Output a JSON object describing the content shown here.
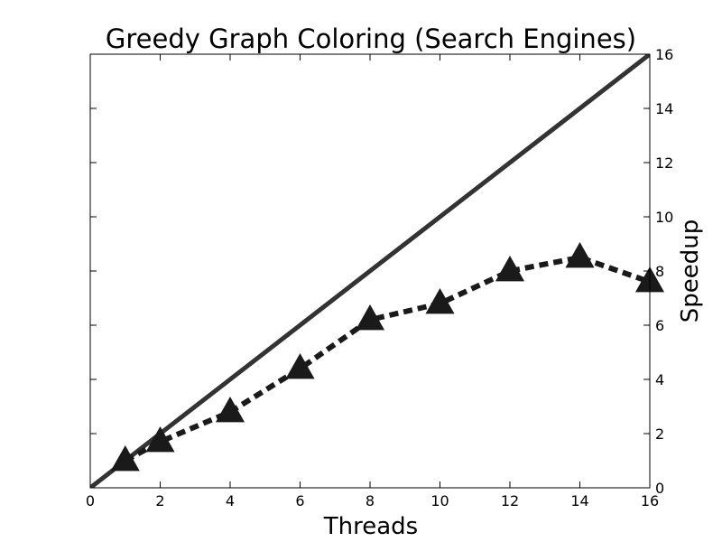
{
  "chart_data": {
    "type": "line",
    "title": "Greedy Graph Coloring (Search Engines)",
    "xlabel": "Threads",
    "ylabel": "Speedup",
    "xlim": [
      0,
      16
    ],
    "ylim": [
      0,
      16
    ],
    "x_ticks": [
      0,
      2,
      4,
      6,
      8,
      10,
      12,
      14,
      16
    ],
    "y_ticks": [
      0,
      2,
      4,
      6,
      8,
      10,
      12,
      14,
      16
    ],
    "y_axis_side": "right",
    "grid": false,
    "series": [
      {
        "style": "solid",
        "color": "#333333",
        "marker": "none",
        "x": [
          0,
          16
        ],
        "y": [
          0,
          16
        ]
      },
      {
        "style": "dashed",
        "color": "#1a1a1a",
        "marker": "triangle",
        "x": [
          1,
          2,
          4,
          6,
          8,
          10,
          12,
          14,
          16
        ],
        "y": [
          1.0,
          1.7,
          2.8,
          4.4,
          6.2,
          6.8,
          8.0,
          8.5,
          7.6
        ]
      }
    ]
  }
}
